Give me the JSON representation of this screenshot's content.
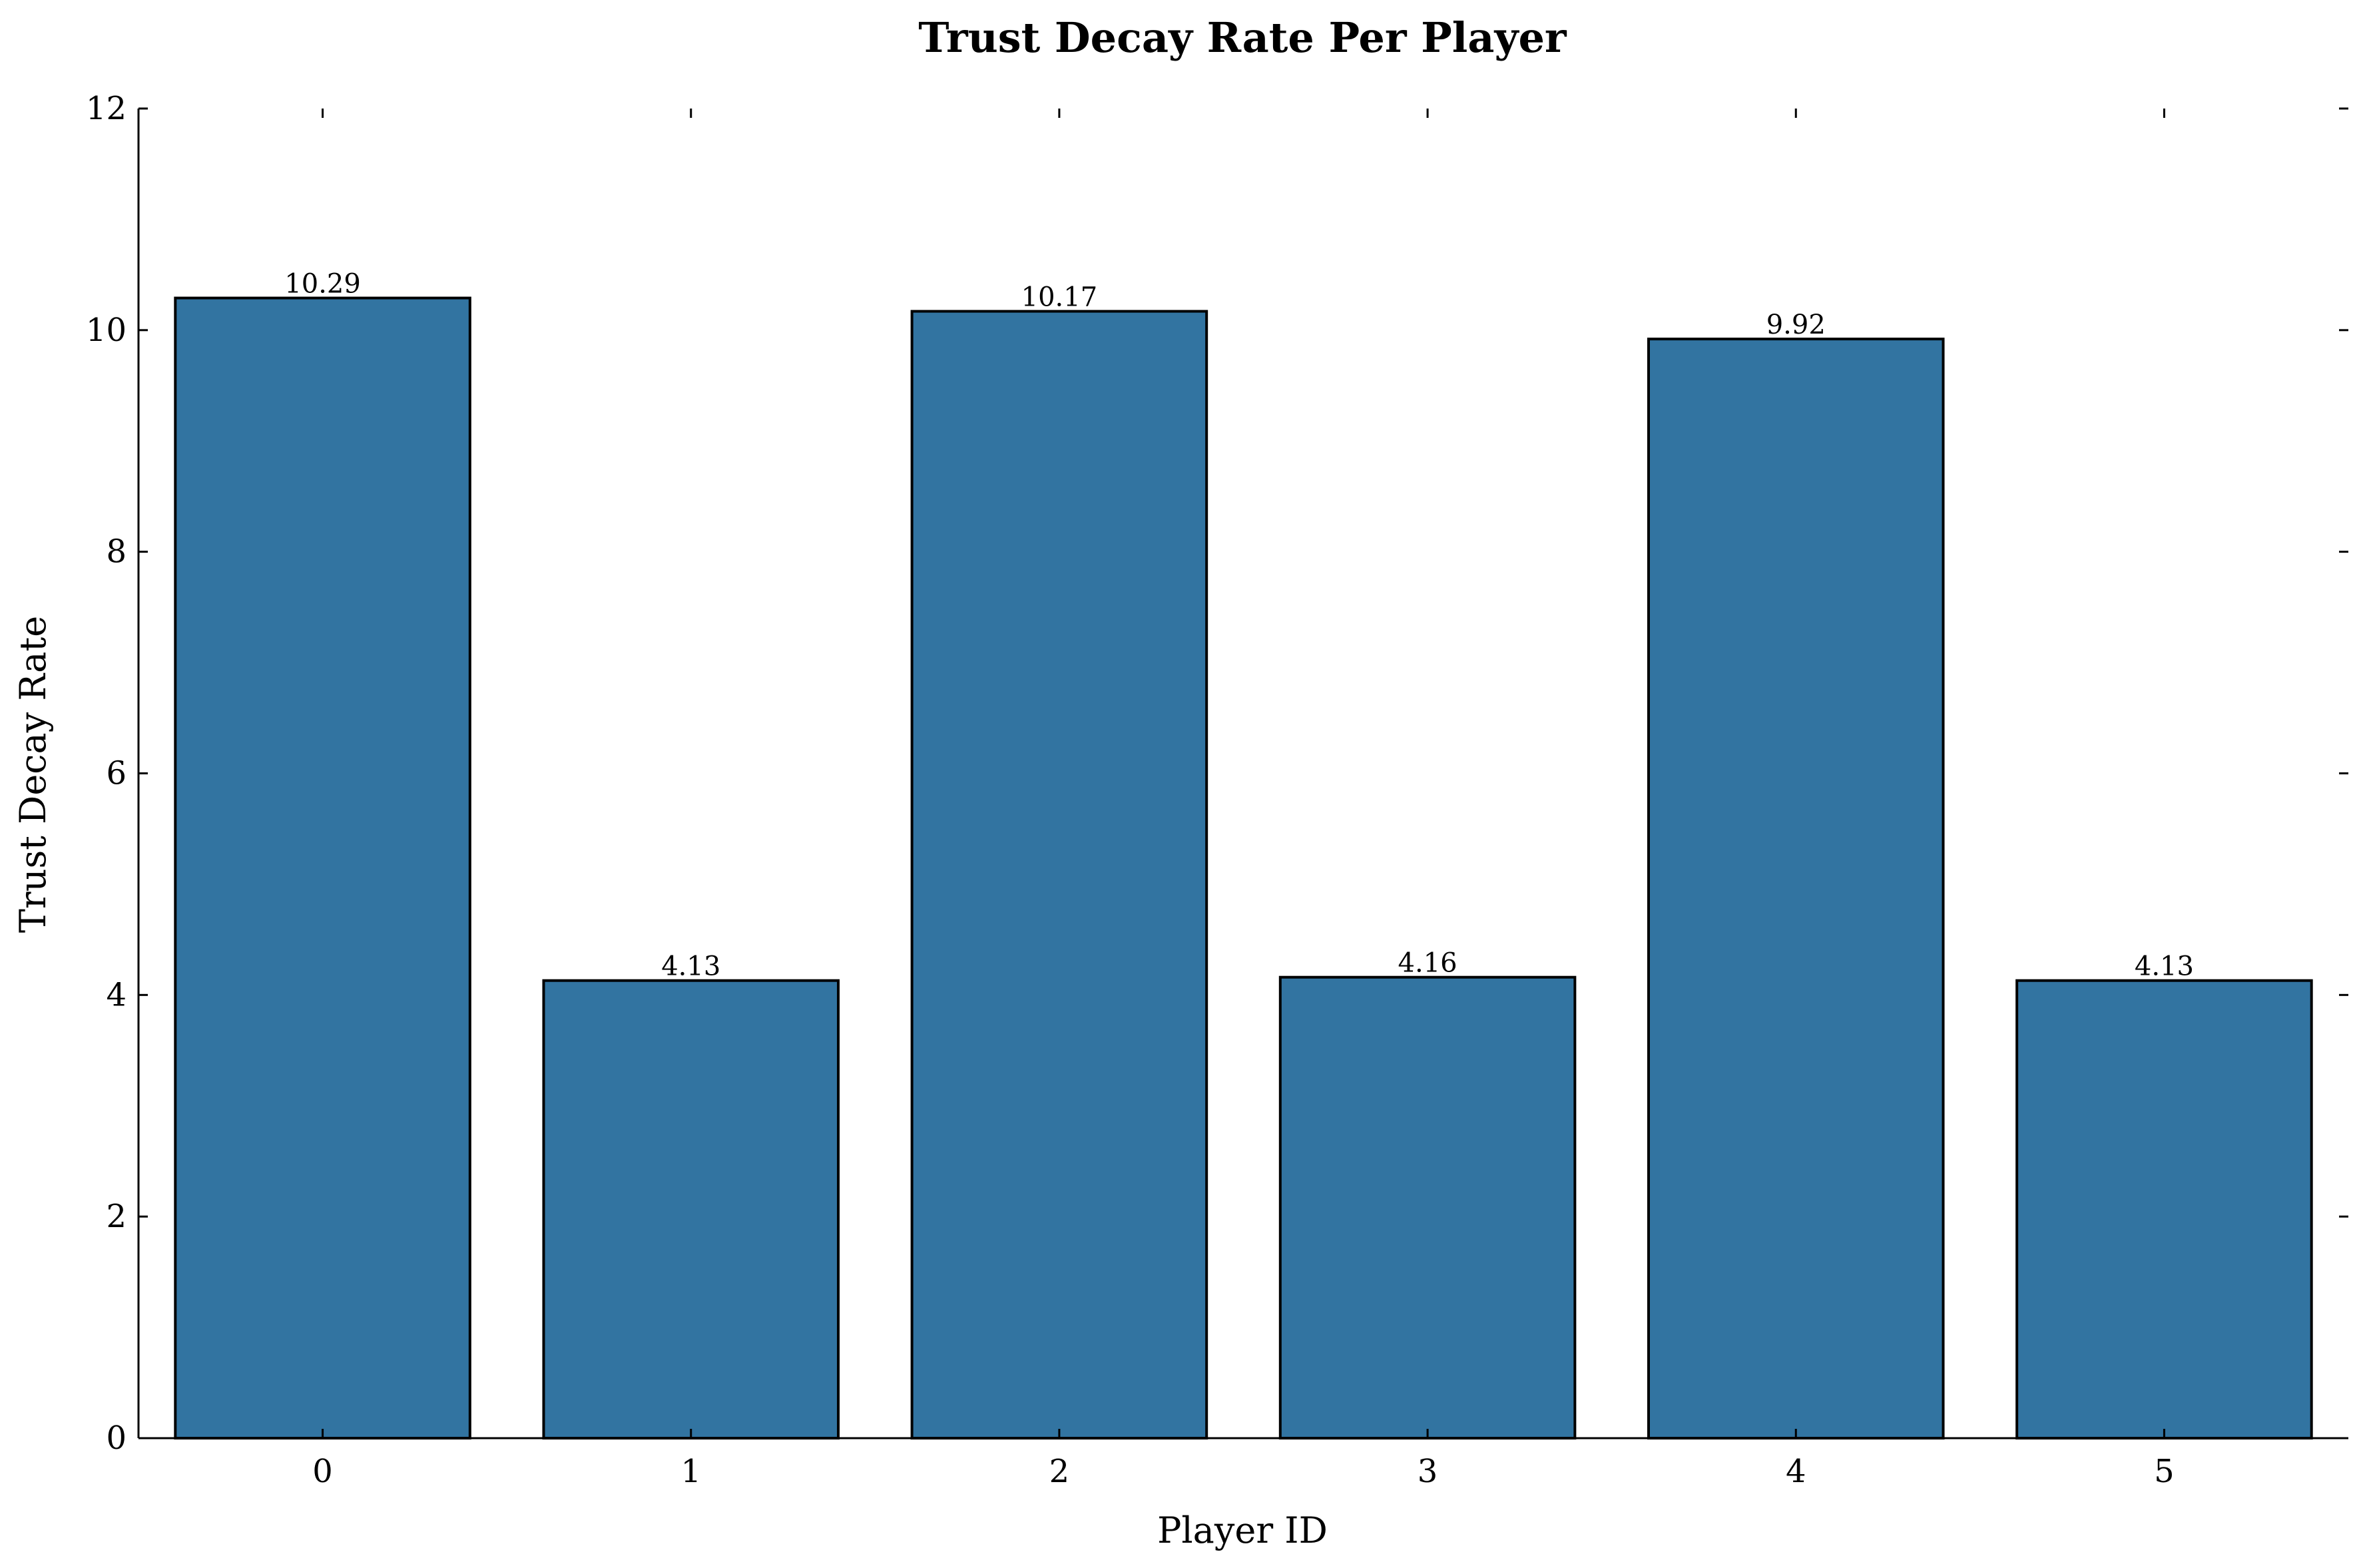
{
  "chart_data": {
    "type": "bar",
    "title": "Trust Decay Rate Per Player",
    "xlabel": "Player ID",
    "ylabel": "Trust Decay Rate",
    "categories": [
      "0",
      "1",
      "2",
      "3",
      "4",
      "5"
    ],
    "values": [
      10.29,
      4.13,
      10.17,
      4.16,
      9.92,
      4.13
    ],
    "data_labels": [
      "10.29",
      "4.13",
      "10.17",
      "4.16",
      "9.92",
      "4.13"
    ],
    "ylim": [
      0,
      12
    ],
    "yticks": [
      0,
      2,
      4,
      6,
      8,
      10,
      12
    ],
    "ytick_labels": [
      "0",
      "2",
      "4",
      "6",
      "8",
      "10",
      "12"
    ],
    "grid": false,
    "legend": "none",
    "bar_color": "#3274a1",
    "edge_color": "#000000"
  }
}
